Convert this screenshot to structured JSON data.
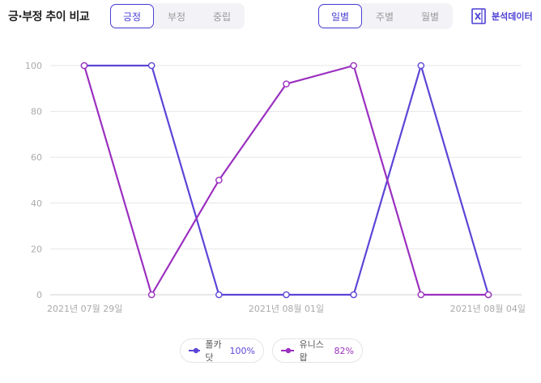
{
  "header": {
    "title": "긍·부정 추이 비교",
    "sentiment_tabs": [
      {
        "label": "긍정",
        "active": true
      },
      {
        "label": "부정",
        "active": false
      },
      {
        "label": "중립",
        "active": false
      }
    ],
    "period_tabs": [
      {
        "label": "일별",
        "active": true
      },
      {
        "label": "주별",
        "active": false
      },
      {
        "label": "월별",
        "active": false
      }
    ],
    "export_label": "분석데이터",
    "export_icon": "excel-icon"
  },
  "colors": {
    "accent": "#4b3fd4",
    "series1": "#5b45d6",
    "series2": "#9b2fbf"
  },
  "legend": [
    {
      "name": "폴카닷",
      "value": "100%",
      "color": "#5b45d6"
    },
    {
      "name": "유니스왑",
      "value": "82%",
      "color": "#9b2fbf"
    }
  ],
  "chart_data": {
    "type": "line",
    "x": [
      "2021-07-29",
      "2021-07-30",
      "2021-07-31",
      "2021-08-01",
      "2021-08-02",
      "2021-08-03",
      "2021-08-04"
    ],
    "x_tick_labels": [
      "2021년 07월 29일",
      "2021년 08월 01일",
      "2021년 08월 04일"
    ],
    "y_ticks": [
      0,
      20,
      40,
      60,
      80,
      100
    ],
    "ylim": [
      0,
      100
    ],
    "grid": true,
    "legend_position": "bottom",
    "series": [
      {
        "name": "폴카닷",
        "color": "#5b45d6",
        "values": [
          100,
          100,
          0,
          0,
          0,
          100,
          0
        ]
      },
      {
        "name": "유니스왑",
        "color": "#9b2fbf",
        "values": [
          100,
          0,
          50,
          92,
          100,
          0,
          0
        ]
      }
    ]
  }
}
